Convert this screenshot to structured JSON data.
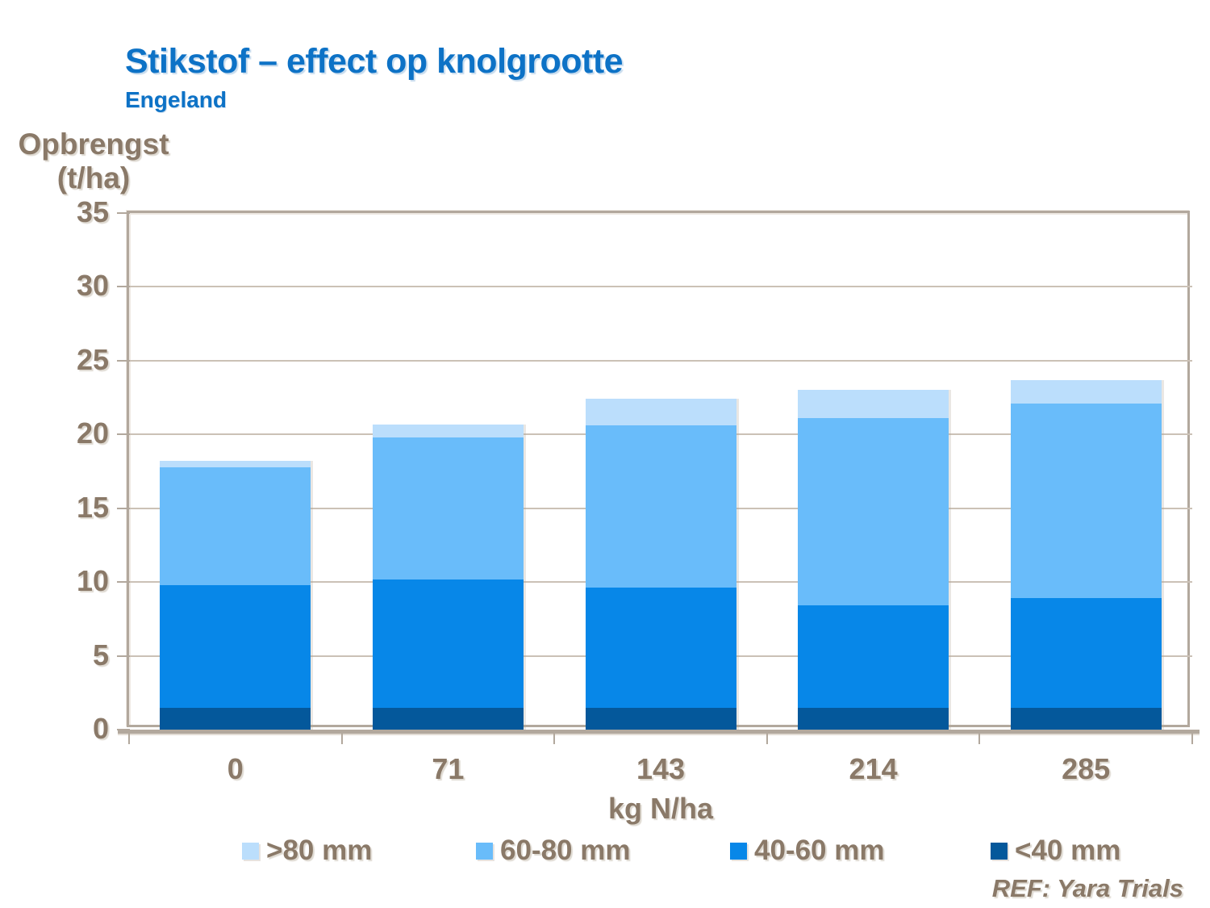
{
  "title": "Stikstof – effect op knolgrootte",
  "subtitle": "Engeland",
  "ref_note": "REF: Yara Trials",
  "y_axis": {
    "label_line1": "Opbrengst",
    "label_line2": "(t/ha)",
    "ticks": [
      0,
      5,
      10,
      15,
      20,
      25,
      30,
      35
    ],
    "max": 35
  },
  "x_axis": {
    "label": "kg N/ha",
    "categories": [
      "0",
      "71",
      "143",
      "214",
      "285"
    ]
  },
  "legend": [
    {
      "label": ">80 mm",
      "color": "#BBDEFC"
    },
    {
      "label": "60-80 mm",
      "color": "#69BCFA"
    },
    {
      "label": "40-60 mm",
      "color": "#0787E8"
    },
    {
      "label": "<40 mm",
      "color": "#04589B"
    }
  ],
  "colors": {
    "title_blue": "#0D72C6",
    "text_brown": "#8A7968",
    "axis_tan": "#B2A89D",
    "gridline": "#CBC1B6",
    "background": "#FFFFFF"
  },
  "chart_data": {
    "type": "bar",
    "stacked": true,
    "title": "Stikstof – effect op knolgrootte",
    "subtitle": "Engeland",
    "xlabel": "kg N/ha",
    "ylabel": "Opbrengst (t/ha)",
    "ylim": [
      0,
      35
    ],
    "grid": true,
    "legend_position": "bottom",
    "categories": [
      0,
      71,
      143,
      214,
      285
    ],
    "series": [
      {
        "name": "<40 mm",
        "color": "#04589B",
        "values": [
          1.5,
          1.5,
          1.5,
          1.5,
          1.5
        ]
      },
      {
        "name": "40-60 mm",
        "color": "#0787E8",
        "values": [
          8.3,
          8.7,
          8.1,
          6.9,
          7.4
        ]
      },
      {
        "name": "60-80 mm",
        "color": "#69BCFA",
        "values": [
          8.0,
          9.6,
          11.0,
          12.7,
          13.2
        ]
      },
      {
        "name": ">80 mm",
        "color": "#BBDEFC",
        "values": [
          0.4,
          0.9,
          1.8,
          1.9,
          1.6
        ]
      }
    ],
    "stack_totals": [
      18.2,
      20.7,
      22.4,
      23.0,
      23.7
    ]
  }
}
